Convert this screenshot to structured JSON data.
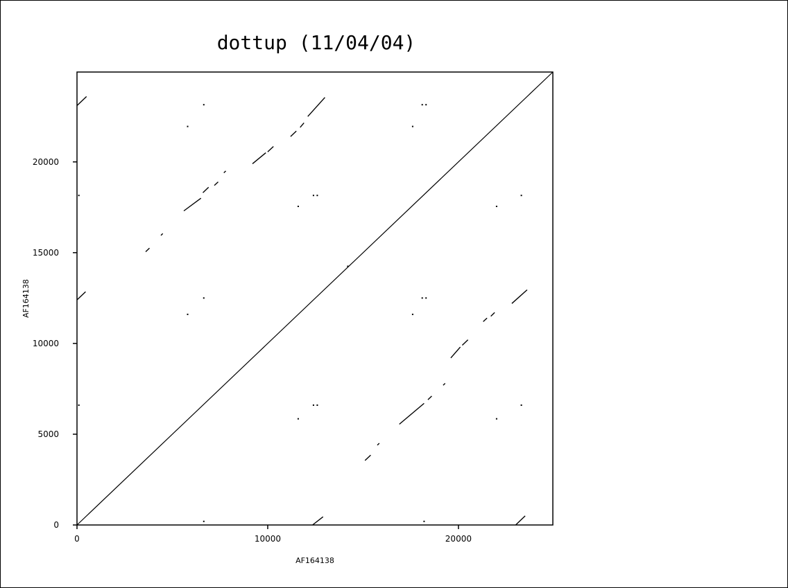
{
  "chart_data": {
    "type": "scatter",
    "title": "dottup (11/04/04)",
    "xlabel": "AF164138",
    "ylabel": "AF164138",
    "xlim": [
      0,
      24950
    ],
    "ylim": [
      0,
      24950
    ],
    "xticks": [
      0,
      10000,
      20000
    ],
    "yticks": [
      0,
      5000,
      10000,
      15000,
      20000
    ],
    "x_tick_labels": [
      "0",
      "10000",
      "20000"
    ],
    "y_tick_labels": [
      "0",
      "5000",
      "10000",
      "15000",
      "20000"
    ],
    "grid": false,
    "legend": "none",
    "color": "#000000",
    "series": [
      {
        "kind": "segments",
        "values": [
          [
            [
              0,
              0
            ],
            [
              24950,
              24950
            ]
          ],
          [
            [
              0,
              23100
            ],
            [
              500,
              23600
            ]
          ],
          [
            [
              0,
              12400
            ],
            [
              450,
              12850
            ]
          ],
          [
            [
              3600,
              15050
            ],
            [
              3800,
              15250
            ]
          ],
          [
            [
              4400,
              15950
            ],
            [
              4500,
              16050
            ]
          ],
          [
            [
              5600,
              17300
            ],
            [
              6500,
              18000
            ]
          ],
          [
            [
              6600,
              18300
            ],
            [
              6900,
              18600
            ]
          ],
          [
            [
              7200,
              18700
            ],
            [
              7400,
              18900
            ]
          ],
          [
            [
              7700,
              19400
            ],
            [
              7800,
              19500
            ]
          ],
          [
            [
              9200,
              19900
            ],
            [
              9900,
              20500
            ]
          ],
          [
            [
              10000,
              20550
            ],
            [
              10300,
              20850
            ]
          ],
          [
            [
              11200,
              21400
            ],
            [
              11500,
              21700
            ]
          ],
          [
            [
              11700,
              21900
            ],
            [
              11900,
              22150
            ]
          ],
          [
            [
              12100,
              22500
            ],
            [
              13000,
              23550
            ]
          ],
          [
            [
              12350,
              0
            ],
            [
              12900,
              450
            ]
          ],
          [
            [
              15100,
              3550
            ],
            [
              15400,
              3850
            ]
          ],
          [
            [
              15750,
              4400
            ],
            [
              15850,
              4500
            ]
          ],
          [
            [
              16900,
              5550
            ],
            [
              18200,
              6700
            ]
          ],
          [
            [
              18400,
              6900
            ],
            [
              18600,
              7100
            ]
          ],
          [
            [
              19200,
              7700
            ],
            [
              19300,
              7800
            ]
          ],
          [
            [
              19600,
              9200
            ],
            [
              20100,
              9800
            ]
          ],
          [
            [
              20200,
              9900
            ],
            [
              20500,
              10200
            ]
          ],
          [
            [
              21300,
              11200
            ],
            [
              21500,
              11400
            ]
          ],
          [
            [
              21700,
              11500
            ],
            [
              21900,
              11700
            ]
          ],
          [
            [
              22800,
              12200
            ],
            [
              23600,
              12950
            ]
          ],
          [
            [
              23000,
              0
            ],
            [
              23500,
              500
            ]
          ]
        ]
      },
      {
        "kind": "dots",
        "values": [
          [
            6650,
            23150
          ],
          [
            18100,
            23150
          ],
          [
            18300,
            23150
          ],
          [
            5800,
            21950
          ],
          [
            17600,
            21950
          ],
          [
            100,
            18150
          ],
          [
            12400,
            18150
          ],
          [
            12600,
            18150
          ],
          [
            23300,
            18150
          ],
          [
            11600,
            17550
          ],
          [
            22000,
            17550
          ],
          [
            6650,
            12500
          ],
          [
            18100,
            12500
          ],
          [
            18300,
            12500
          ],
          [
            5800,
            11600
          ],
          [
            17600,
            11600
          ],
          [
            14200,
            14250
          ],
          [
            100,
            6600
          ],
          [
            12400,
            6600
          ],
          [
            12600,
            6600
          ],
          [
            23300,
            6600
          ],
          [
            11600,
            5850
          ],
          [
            22000,
            5850
          ],
          [
            6650,
            200
          ],
          [
            18200,
            200
          ]
        ]
      }
    ]
  }
}
